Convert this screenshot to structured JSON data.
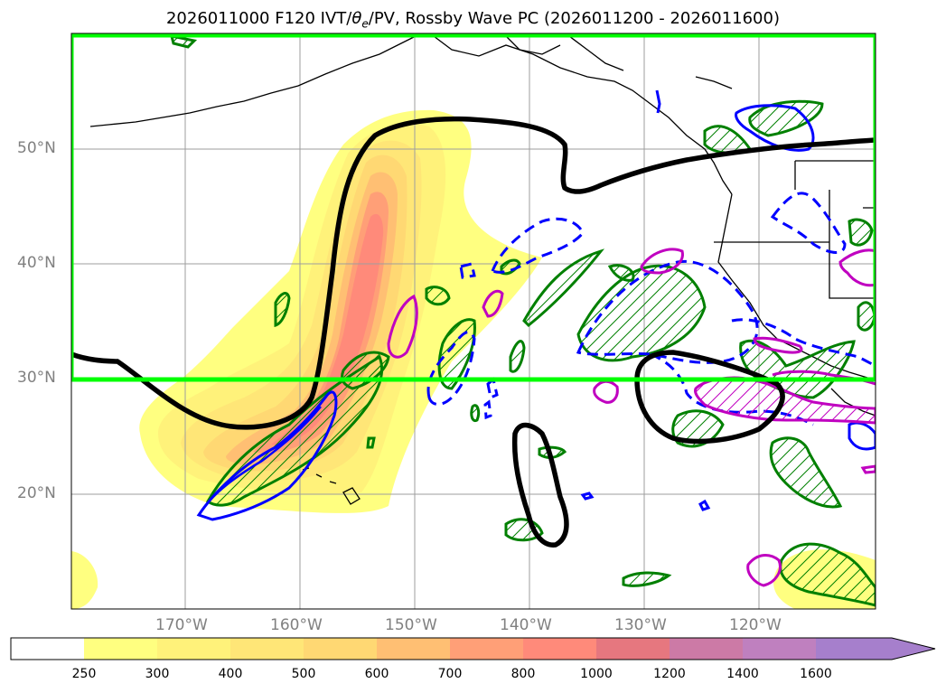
{
  "title": {
    "prefix": "2026011000 F120 IVT/",
    "theta": "θ",
    "theta_sub": "e",
    "suffix": "/PV, Rossby Wave PC (2026011200 - 2026011600)"
  },
  "axes": {
    "lat_labels": [
      "50°N",
      "40°N",
      "30°N",
      "20°N"
    ],
    "lon_labels": [
      "170°W",
      "160°W",
      "150°W",
      "140°W",
      "130°W",
      "120°W"
    ]
  },
  "colorbar": {
    "levels": [
      "250",
      "300",
      "400",
      "500",
      "600",
      "700",
      "800",
      "1000",
      "1200",
      "1400",
      "1600"
    ],
    "colors": [
      "#ffffff",
      "#ffff80",
      "#fff27a",
      "#ffe677",
      "#ffd873",
      "#ffbf73",
      "#ff9f77",
      "#ff8a7a",
      "#e6777f",
      "#cc7aa6",
      "#bf80bf",
      "#a67fcc"
    ],
    "extend": "max"
  },
  "colors": {
    "box": "#00ff00",
    "ridge_line": "#000000",
    "green_contour": "#008000",
    "blue_contour": "#0000ff",
    "magenta_contour": "#c000c0",
    "grid": "#9e9e9e"
  }
}
